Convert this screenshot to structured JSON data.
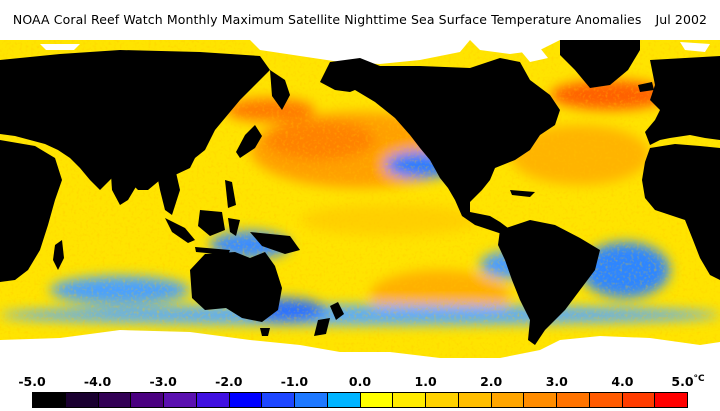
{
  "header": {
    "title": "NOAA Coral Reef Watch Monthly Maximum Satellite Nighttime Sea Surface Temperature Anomalies",
    "date": "Jul 2002"
  },
  "legend": {
    "unit": "°C",
    "tick_labels": [
      "-5.0",
      "-4.0",
      "-3.0",
      "-2.0",
      "-1.0",
      "0.0",
      "1.0",
      "2.0",
      "3.0",
      "4.0",
      "5.0"
    ],
    "bins": [
      {
        "min": -5.0,
        "max": -4.5,
        "color": "#000000"
      },
      {
        "min": -4.5,
        "max": -4.0,
        "color": "#1a0030"
      },
      {
        "min": -4.0,
        "max": -3.5,
        "color": "#320055"
      },
      {
        "min": -3.5,
        "max": -3.0,
        "color": "#4a0080"
      },
      {
        "min": -3.0,
        "max": -2.5,
        "color": "#5a10b0"
      },
      {
        "min": -2.5,
        "max": -2.0,
        "color": "#4010e0"
      },
      {
        "min": -2.0,
        "max": -1.5,
        "color": "#0000ff"
      },
      {
        "min": -1.5,
        "max": -1.0,
        "color": "#1e46ff"
      },
      {
        "min": -1.0,
        "max": -0.5,
        "color": "#1e78ff"
      },
      {
        "min": -0.5,
        "max": 0.0,
        "color": "#00b4ff"
      },
      {
        "min": 0.0,
        "max": 0.5,
        "color": "#ffff00"
      },
      {
        "min": 0.5,
        "max": 1.0,
        "color": "#ffeb00"
      },
      {
        "min": 1.0,
        "max": 1.5,
        "color": "#ffd200"
      },
      {
        "min": 1.5,
        "max": 2.0,
        "color": "#ffbe00"
      },
      {
        "min": 2.0,
        "max": 2.5,
        "color": "#ffa500"
      },
      {
        "min": 2.5,
        "max": 3.0,
        "color": "#ff8c00"
      },
      {
        "min": 3.0,
        "max": 3.5,
        "color": "#ff7300"
      },
      {
        "min": 3.5,
        "max": 4.0,
        "color": "#ff5a00"
      },
      {
        "min": 4.0,
        "max": 4.5,
        "color": "#ff3c00"
      },
      {
        "min": 4.5,
        "max": 5.0,
        "color": "#ff0000"
      }
    ]
  },
  "map": {
    "land_color": "#000000",
    "ice_color": "#ffffff",
    "ocean_base_color": "#ffe400"
  }
}
